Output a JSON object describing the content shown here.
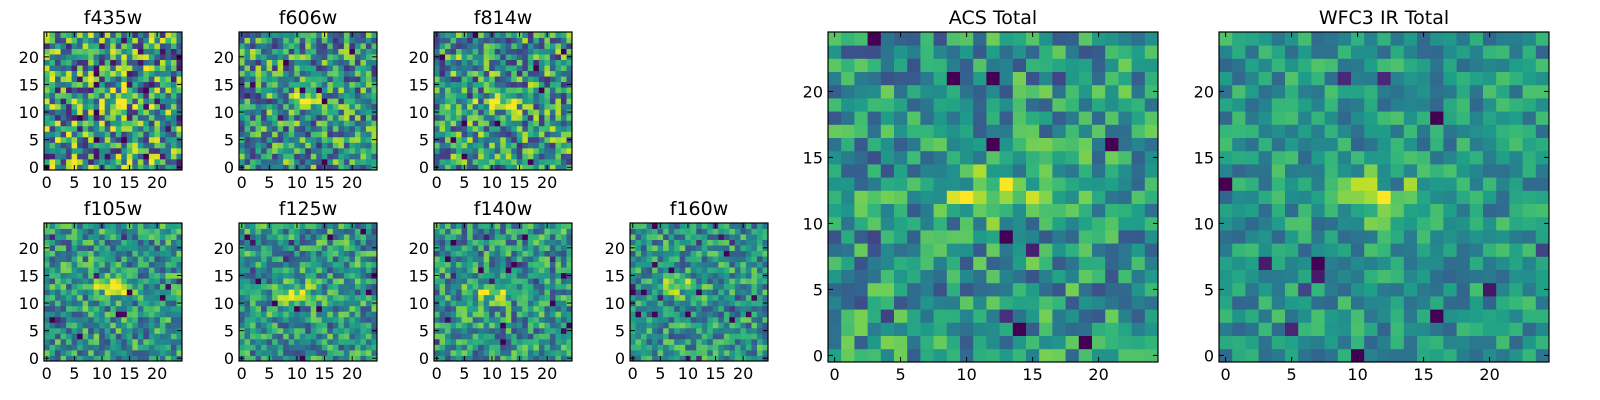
{
  "figure": {
    "colormap": "viridis",
    "colors": {
      "low": "#440154",
      "mid": "#21918c",
      "high": "#fde725"
    }
  },
  "chart_data": [
    {
      "type": "heatmap",
      "title": "f435w",
      "grid": [
        25,
        25
      ],
      "xlim": [
        0,
        24
      ],
      "ylim": [
        0,
        24
      ],
      "xticks": [
        0,
        5,
        10,
        15,
        20
      ],
      "yticks": [
        0,
        5,
        10,
        15,
        20
      ],
      "source_center": [
        12,
        12
      ],
      "noise": 0.95,
      "seed": 1
    },
    {
      "type": "heatmap",
      "title": "f606w",
      "grid": [
        25,
        25
      ],
      "xlim": [
        0,
        24
      ],
      "ylim": [
        0,
        24
      ],
      "xticks": [
        0,
        5,
        10,
        15,
        20
      ],
      "yticks": [
        0,
        5,
        10,
        15,
        20
      ],
      "source_center": [
        12,
        12
      ],
      "noise": 0.75,
      "seed": 2
    },
    {
      "type": "heatmap",
      "title": "f814w",
      "grid": [
        25,
        25
      ],
      "xlim": [
        0,
        24
      ],
      "ylim": [
        0,
        24
      ],
      "xticks": [
        0,
        5,
        10,
        15,
        20
      ],
      "yticks": [
        0,
        5,
        10,
        15,
        20
      ],
      "source_center": [
        12,
        12
      ],
      "noise": 0.8,
      "seed": 3
    },
    {
      "type": "heatmap",
      "title": "f105w",
      "grid": [
        25,
        25
      ],
      "xlim": [
        0,
        24
      ],
      "ylim": [
        0,
        24
      ],
      "xticks": [
        0,
        5,
        10,
        15,
        20
      ],
      "yticks": [
        0,
        5,
        10,
        15,
        20
      ],
      "source_center": [
        12,
        13
      ],
      "noise": 0.6,
      "seed": 4
    },
    {
      "type": "heatmap",
      "title": "f125w",
      "grid": [
        25,
        25
      ],
      "xlim": [
        0,
        24
      ],
      "ylim": [
        0,
        24
      ],
      "xticks": [
        0,
        5,
        10,
        15,
        20
      ],
      "yticks": [
        0,
        5,
        10,
        15,
        20
      ],
      "source_center": [
        9,
        12
      ],
      "noise": 0.6,
      "seed": 5
    },
    {
      "type": "heatmap",
      "title": "f140w",
      "grid": [
        25,
        25
      ],
      "xlim": [
        0,
        24
      ],
      "ylim": [
        0,
        24
      ],
      "xticks": [
        0,
        5,
        10,
        15,
        20
      ],
      "yticks": [
        0,
        5,
        10,
        15,
        20
      ],
      "source_center": [
        10,
        12
      ],
      "noise": 0.6,
      "seed": 6
    },
    {
      "type": "heatmap",
      "title": "f160w",
      "grid": [
        25,
        25
      ],
      "xlim": [
        0,
        24
      ],
      "ylim": [
        0,
        24
      ],
      "xticks": [
        0,
        5,
        10,
        15,
        20
      ],
      "yticks": [
        0,
        5,
        10,
        15,
        20
      ],
      "source_center": [
        8,
        13
      ],
      "noise": 0.55,
      "seed": 7
    },
    {
      "type": "heatmap",
      "title": "ACS Total",
      "grid": [
        25,
        25
      ],
      "xlim": [
        0,
        24
      ],
      "ylim": [
        0,
        24
      ],
      "xticks": [
        0,
        5,
        10,
        15,
        20
      ],
      "yticks": [
        0,
        5,
        10,
        15,
        20
      ],
      "source_center": [
        12,
        12
      ],
      "noise": 0.55,
      "seed": 8
    },
    {
      "type": "heatmap",
      "title": "WFC3 IR Total",
      "grid": [
        25,
        25
      ],
      "xlim": [
        0,
        24
      ],
      "ylim": [
        0,
        24
      ],
      "xticks": [
        0,
        5,
        10,
        15,
        20
      ],
      "yticks": [
        0,
        5,
        10,
        15,
        20
      ],
      "source_center": [
        12,
        12
      ],
      "noise": 0.4,
      "seed": 9
    }
  ]
}
